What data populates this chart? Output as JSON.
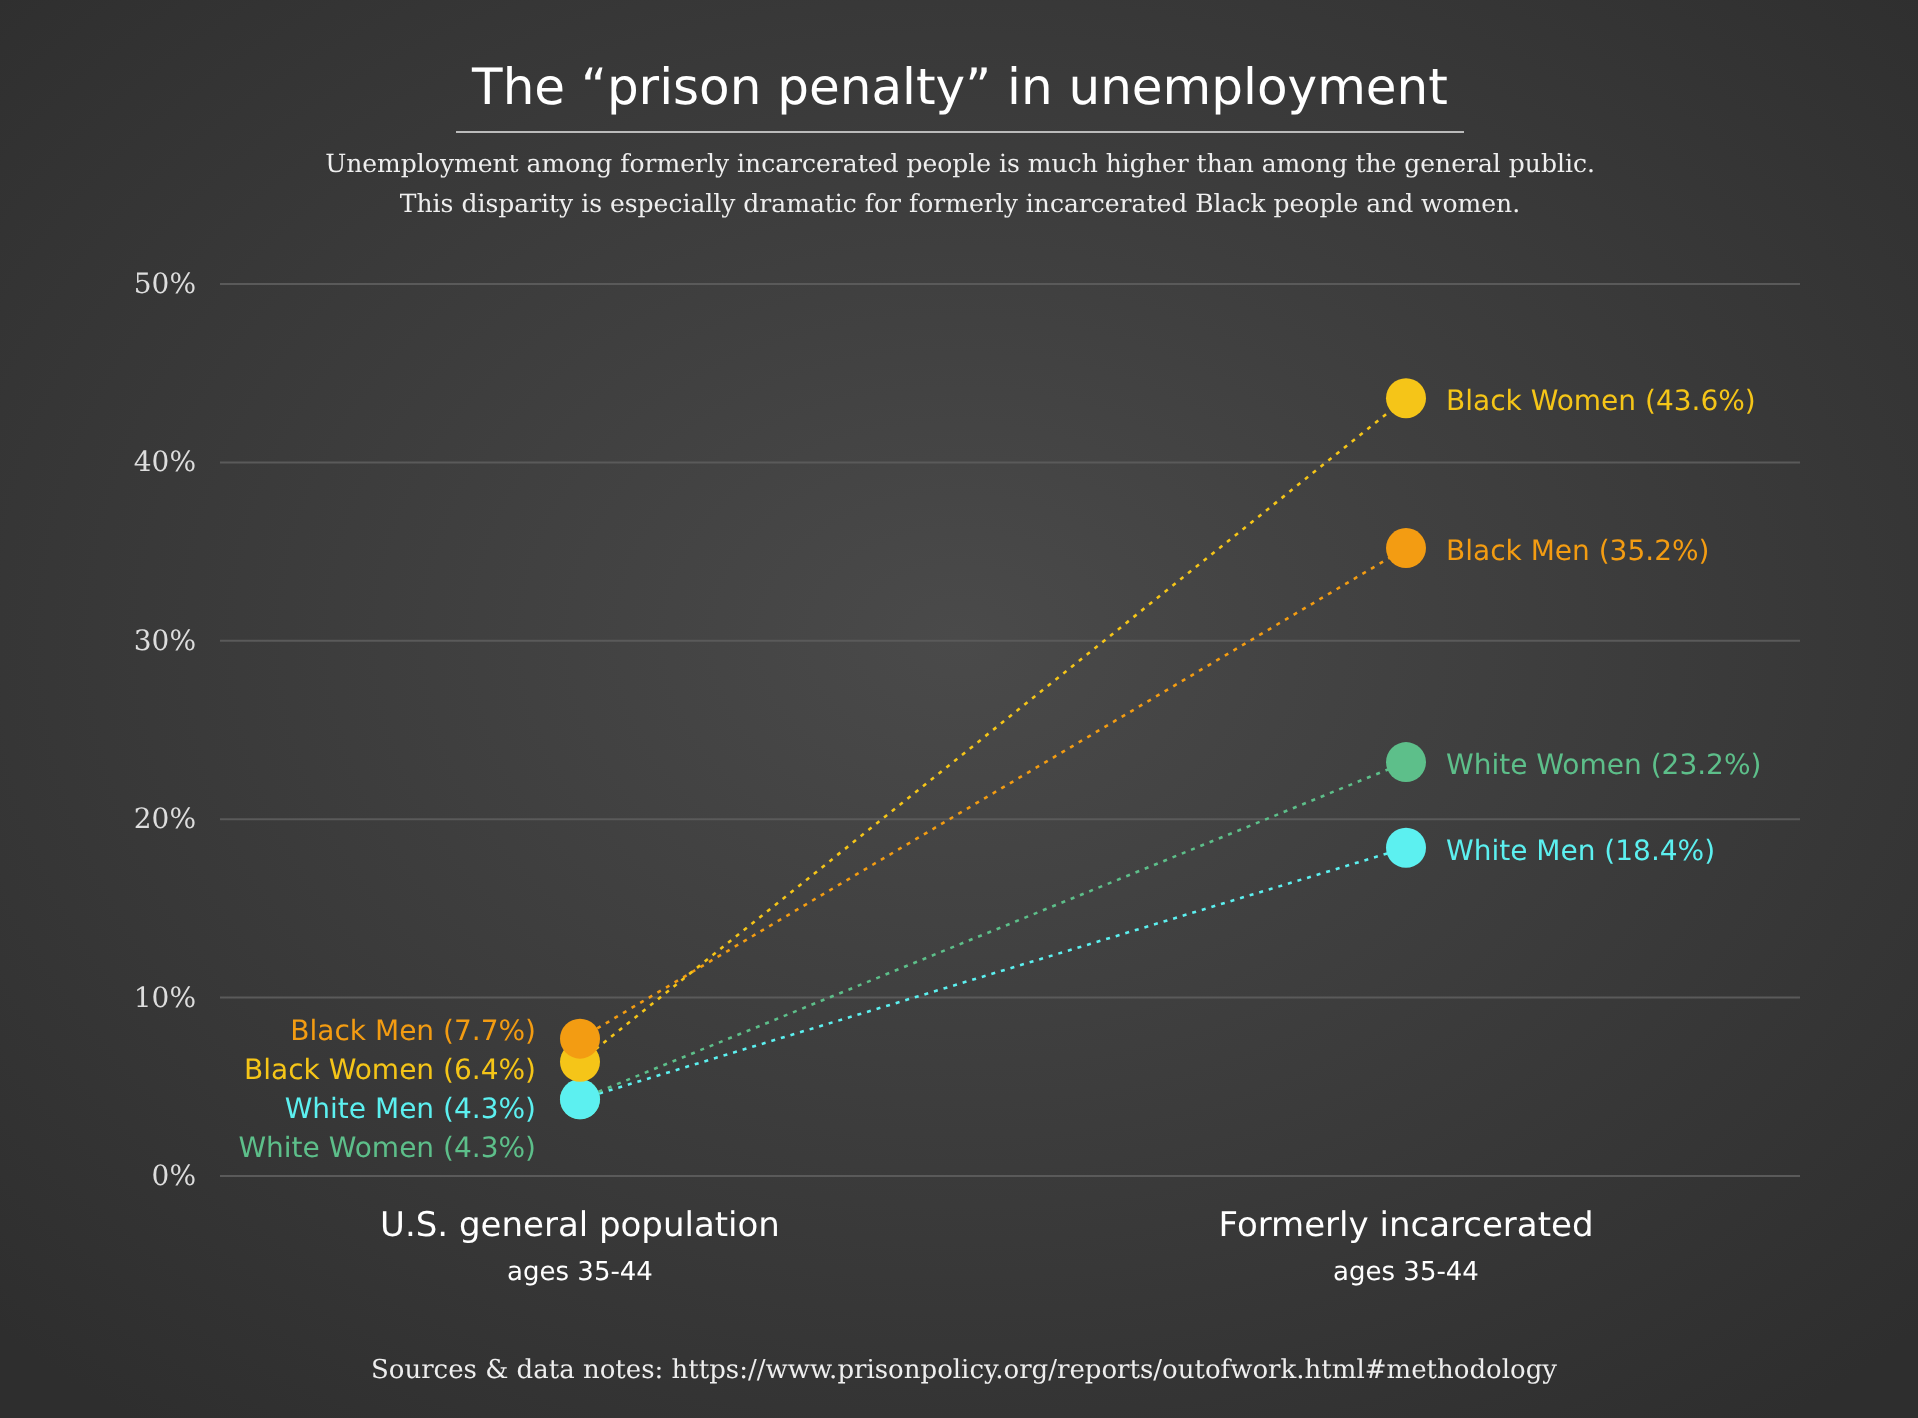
{
  "chart_data": {
    "type": "line",
    "title": "The “prison penalty” in unemployment",
    "subtitle": "Unemployment among formerly incarcerated people is much higher than among the general public.\nThis disparity is especially dramatic for formerly incarcerated Black people and women.",
    "categories": [
      "U.S. general population\nages 35-44",
      "Formerly incarcerated\nages 35-44"
    ],
    "series": [
      {
        "name": "Black Men",
        "color": "#f39c12",
        "values": [
          7.7,
          35.2
        ],
        "value_labels": [
          "(7.7%)",
          "(35.2%)"
        ]
      },
      {
        "name": "Black Women",
        "color": "#f5c518",
        "values": [
          6.4,
          43.6
        ],
        "value_labels": [
          "(6.4%)",
          "(43.6%)"
        ]
      },
      {
        "name": "White Men",
        "color": "#5cf0f0",
        "values": [
          4.3,
          18.4
        ],
        "value_labels": [
          "(4.3%)",
          "(18.4%)"
        ]
      },
      {
        "name": "White Women",
        "color": "#5dbf8a",
        "values": [
          4.3,
          23.2
        ],
        "value_labels": [
          "(4.3%)",
          "(23.2%)"
        ]
      }
    ],
    "ylim": [
      0,
      50
    ],
    "yticks": [
      {
        "value": 0,
        "label": "0%"
      },
      {
        "value": 10,
        "label": "10%"
      },
      {
        "value": 20,
        "label": "20%"
      },
      {
        "value": 30,
        "label": "30%"
      },
      {
        "value": 40,
        "label": "40%"
      },
      {
        "value": 50,
        "label": "50%"
      }
    ],
    "grid": "y",
    "marker": "circle",
    "line_style": "dotted",
    "annotations": [
      "Sources & data notes: https://www.prisonpolicy.org/reports/outofwork.html#methodology"
    ]
  }
}
